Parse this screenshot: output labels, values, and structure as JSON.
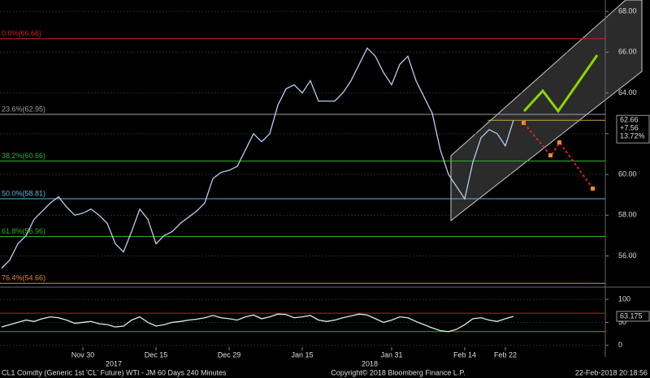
{
  "chart_data": [
    {
      "type": "line",
      "categories": [
        null,
        null,
        null,
        null,
        null,
        null,
        null,
        null,
        null,
        null,
        "Nov 30",
        null,
        null,
        null,
        null,
        null,
        null,
        null,
        null,
        "Dec 15",
        null,
        null,
        null,
        null,
        null,
        null,
        null,
        null,
        "Dec 29",
        null,
        null,
        null,
        null,
        null,
        null,
        null,
        null,
        "Jan 15",
        null,
        null,
        null,
        null,
        null,
        null,
        null,
        null,
        null,
        null,
        "Jan 31",
        null,
        null,
        null,
        null,
        null,
        null,
        null,
        null,
        "Feb 14",
        null,
        null,
        null,
        null,
        "Feb 22",
        null,
        null,
        null,
        null,
        null,
        null,
        null,
        null,
        null,
        null,
        null,
        null
      ],
      "values": [
        55.4,
        55.8,
        56.6,
        57.0,
        57.8,
        58.2,
        58.6,
        58.9,
        58.4,
        58.0,
        58.1,
        58.3,
        58.0,
        57.6,
        56.6,
        56.2,
        57.2,
        58.3,
        57.8,
        56.6,
        57.0,
        57.2,
        57.6,
        57.9,
        58.2,
        58.6,
        59.8,
        60.1,
        60.2,
        60.4,
        61.2,
        62.0,
        61.6,
        62.0,
        63.4,
        64.2,
        64.4,
        64.0,
        64.6,
        63.6,
        63.6,
        63.6,
        64.0,
        64.6,
        65.4,
        66.2,
        65.8,
        65.0,
        64.4,
        65.4,
        65.8,
        64.6,
        63.8,
        63.0,
        61.2,
        60.0,
        59.4,
        58.8,
        60.6,
        61.8,
        62.2,
        62.0,
        61.4,
        62.66,
        null,
        null,
        null,
        null,
        null,
        null,
        null,
        null,
        null,
        null,
        null
      ],
      "color": "#b9cdf0",
      "ylim": [
        54.55,
        68.56
      ],
      "yticks": [
        {
          "value": 56,
          "label": "56.00"
        },
        {
          "value": 58,
          "label": "58.00"
        },
        {
          "value": 60,
          "label": "60.00"
        },
        {
          "value": 62,
          "label": "62.00"
        },
        {
          "value": 64,
          "label": "64.00"
        },
        {
          "value": 66,
          "label": "66.00"
        },
        {
          "value": 68,
          "label": "68.00"
        }
      ],
      "grid": true,
      "levels": [
        {
          "label": "0.0%(66.66)",
          "value": 66.66,
          "color": "#d02020"
        },
        {
          "label": "23.6%(62.95)",
          "value": 62.95,
          "color": "#a0a0a0"
        },
        {
          "label": "38.2%(60.66)",
          "value": 60.66,
          "color": "#2fb02f"
        },
        {
          "label": "50.0%(58.81)",
          "value": 58.81,
          "color": "#5ab8e0"
        },
        {
          "label": "61.8%(56.96)",
          "value": 56.96,
          "color": "#2fb02f"
        },
        {
          "label": "76.4%(54.66)",
          "value": 54.66,
          "color": "#e08a30"
        }
      ],
      "last_value": 62.66,
      "last_labels": [
        "+7.56",
        "13.72%"
      ]
    },
    {
      "type": "line",
      "values": [
        40,
        45,
        50,
        55,
        52,
        58,
        62,
        60,
        55,
        48,
        50,
        52,
        47,
        45,
        40,
        42,
        55,
        62,
        50,
        42,
        45,
        50,
        52,
        55,
        57,
        60,
        65,
        60,
        58,
        55,
        62,
        66,
        58,
        62,
        68,
        67,
        60,
        62,
        65,
        55,
        52,
        55,
        60,
        64,
        68,
        66,
        58,
        50,
        55,
        62,
        60,
        52,
        45,
        38,
        32,
        30,
        35,
        45,
        58,
        60,
        55,
        52,
        58,
        63.175,
        null,
        null,
        null,
        null,
        null,
        null,
        null,
        null,
        null,
        null,
        null
      ],
      "color": "#e8e8e8",
      "ylim": [
        -25,
        123
      ],
      "yticks": [
        0,
        50,
        100
      ],
      "grid": true,
      "levels": [
        {
          "value": 70,
          "color": "#c02020"
        },
        {
          "value": 30,
          "color": "#2fb02f"
        }
      ],
      "last_value": 63.175
    }
  ],
  "year_labels": [
    "2017",
    "2018"
  ],
  "footer": {
    "left": "CL1 Comdty (Generic 1st 'CL' Future) WTI - JM 60 Days 240 Minutes",
    "center": "Copyright© 2018 Bloomberg Finance L.P.",
    "right": "22-Feb-2018 20:18:56"
  }
}
